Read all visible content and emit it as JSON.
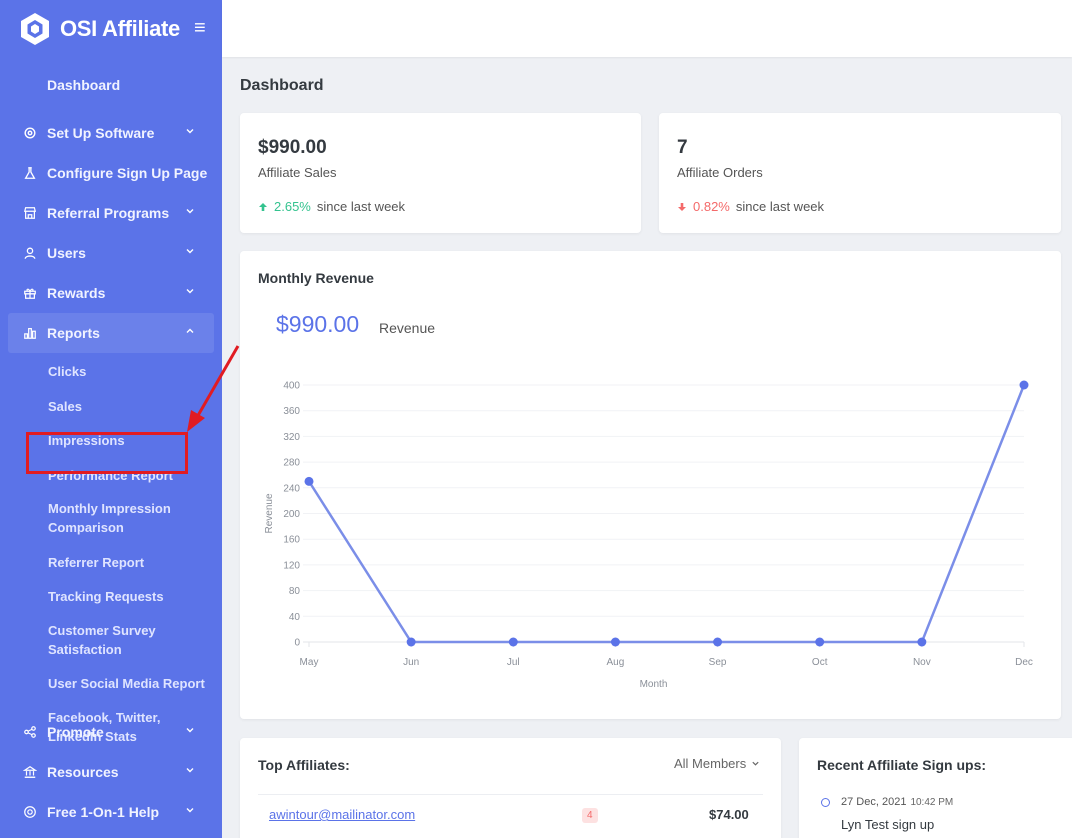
{
  "brand": {
    "name": "OSI Affiliate"
  },
  "sidebar": {
    "dashboard_label": "Dashboard",
    "items": [
      {
        "label": "Set Up Software",
        "icon": "gear-icon"
      },
      {
        "label": "Configure Sign Up Page",
        "icon": "flask-icon"
      },
      {
        "label": "Referral Programs",
        "icon": "store-icon"
      },
      {
        "label": "Users",
        "icon": "user-icon"
      },
      {
        "label": "Rewards",
        "icon": "gift-icon"
      },
      {
        "label": "Reports",
        "icon": "bar-chart-icon"
      }
    ],
    "reports_sub": [
      "Clicks",
      "Sales",
      "Impressions",
      "Performance Report",
      "Monthly Impression Comparison",
      "Referrer Report",
      "Tracking Requests",
      "Customer Survey Satisfaction",
      "User Social Media Report",
      "Facebook, Twitter, LinkedIn Stats"
    ],
    "bottom_items": [
      {
        "label": "Promote",
        "icon": "share-icon"
      },
      {
        "label": "Resources",
        "icon": "bank-icon"
      },
      {
        "label": "Free 1-On-1 Help",
        "icon": "lifebuoy-icon"
      }
    ]
  },
  "page": {
    "title": "Dashboard"
  },
  "stats": {
    "sales": {
      "value": "$990.00",
      "label": "Affiliate Sales",
      "change": "2.65%",
      "change_text": "since last week",
      "direction": "up"
    },
    "orders": {
      "value": "7",
      "label": "Affiliate Orders",
      "change": "0.82%",
      "change_text": "since last week",
      "direction": "down"
    }
  },
  "revenue": {
    "title": "Monthly Revenue",
    "value": "$990.00",
    "value_label": "Revenue"
  },
  "chart_data": {
    "type": "line",
    "x": [
      "May",
      "Jun",
      "Jul",
      "Aug",
      "Sep",
      "Oct",
      "Nov",
      "Dec"
    ],
    "series": [
      {
        "values": [
          250,
          0,
          0,
          0,
          0,
          0,
          0,
          400
        ]
      }
    ],
    "yticks": [
      0,
      40,
      80,
      120,
      160,
      200,
      240,
      280,
      320,
      360,
      400
    ],
    "ylim": [
      0,
      400
    ],
    "xlabel": "Month",
    "ylabel": "Revenue",
    "grid": true,
    "color": "#7b8ee8"
  },
  "top_affiliates": {
    "title": "Top Affiliates:",
    "filter": "All Members",
    "rows": [
      {
        "email": "awintour@mailinator.com",
        "badge": "4",
        "amount": "$74.00"
      }
    ]
  },
  "signups": {
    "title": "Recent Affiliate Sign ups:",
    "items": [
      {
        "date": "27 Dec, 2021",
        "time": "10:42 PM",
        "text": "Lyn Test sign up"
      }
    ]
  },
  "colors": {
    "sidebar": "#5b73e8",
    "accent": "#5b73e8",
    "up": "#34c38f",
    "down": "#f46a6a",
    "annotation": "#e11b22"
  }
}
